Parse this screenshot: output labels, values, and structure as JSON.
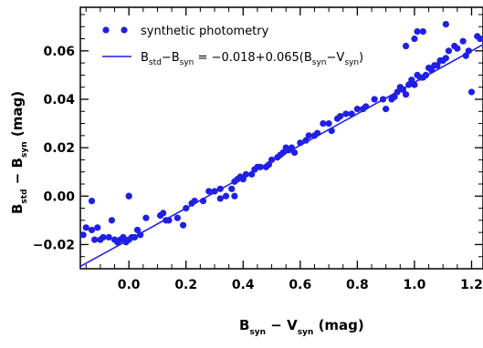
{
  "chart_data": {
    "type": "scatter",
    "xlabel": {
      "main": "B",
      "sub1": "syn",
      "dash": " − V",
      "sub2": "syn",
      "unit": " (mag)"
    },
    "ylabel": {
      "main": "B",
      "sub1": "std",
      "dash": " − B",
      "sub2": "syn",
      "unit": " (mag)"
    },
    "xlim": [
      -0.17,
      1.24
    ],
    "ylim": [
      -0.03,
      0.078
    ],
    "x_ticks": [
      "0.0",
      "0.2",
      "0.4",
      "0.6",
      "0.8",
      "1.0",
      "1.2"
    ],
    "x_tick_values": [
      0.0,
      0.2,
      0.4,
      0.6,
      0.8,
      1.0,
      1.2
    ],
    "y_ticks": [
      "−0.02",
      "0.00",
      "0.02",
      "0.04",
      "0.06"
    ],
    "y_tick_values": [
      -0.02,
      0.0,
      0.02,
      0.04,
      0.06
    ],
    "legend": {
      "scatter_label": "synthetic photometry",
      "fit_parts": {
        "b1": "B",
        "s1": "std",
        "m1": "−B",
        "s2": "syn",
        "eq": " = −0.018+0.065(B",
        "s3": "syn",
        "m2": "−V",
        "s4": "syn",
        "end": ")"
      }
    },
    "fit": {
      "intercept": -0.018,
      "slope": 0.065
    },
    "color": "#1f1fe6",
    "points": [
      [
        -0.16,
        -0.016
      ],
      [
        -0.15,
        -0.013
      ],
      [
        -0.13,
        -0.002
      ],
      [
        -0.13,
        -0.014
      ],
      [
        -0.12,
        -0.018
      ],
      [
        -0.11,
        -0.013
      ],
      [
        -0.1,
        -0.018
      ],
      [
        -0.09,
        -0.017
      ],
      [
        -0.07,
        -0.017
      ],
      [
        -0.06,
        -0.01
      ],
      [
        -0.05,
        -0.018
      ],
      [
        -0.04,
        -0.019
      ],
      [
        -0.03,
        -0.018
      ],
      [
        -0.02,
        -0.017
      ],
      [
        -0.01,
        -0.019
      ],
      [
        0.0,
        -0.018
      ],
      [
        0.0,
        0.0
      ],
      [
        0.0,
        0.0
      ],
      [
        0.01,
        -0.017
      ],
      [
        0.02,
        -0.017
      ],
      [
        0.03,
        -0.014
      ],
      [
        0.04,
        -0.016
      ],
      [
        0.06,
        -0.009
      ],
      [
        0.11,
        -0.008
      ],
      [
        0.12,
        -0.007
      ],
      [
        0.13,
        -0.01
      ],
      [
        0.14,
        -0.01
      ],
      [
        0.17,
        -0.009
      ],
      [
        0.19,
        -0.012
      ],
      [
        0.2,
        -0.005
      ],
      [
        0.22,
        -0.003
      ],
      [
        0.23,
        -0.002
      ],
      [
        0.26,
        -0.002
      ],
      [
        0.28,
        0.002
      ],
      [
        0.3,
        0.002
      ],
      [
        0.32,
        0.003
      ],
      [
        0.32,
        -0.001
      ],
      [
        0.34,
        0.0
      ],
      [
        0.36,
        0.003
      ],
      [
        0.37,
        0.006
      ],
      [
        0.37,
        0.0
      ],
      [
        0.38,
        0.007
      ],
      [
        0.39,
        0.008
      ],
      [
        0.4,
        0.007
      ],
      [
        0.41,
        0.009
      ],
      [
        0.43,
        0.009
      ],
      [
        0.44,
        0.011
      ],
      [
        0.45,
        0.012
      ],
      [
        0.46,
        0.012
      ],
      [
        0.48,
        0.012
      ],
      [
        0.49,
        0.013
      ],
      [
        0.5,
        0.015
      ],
      [
        0.52,
        0.016
      ],
      [
        0.53,
        0.017
      ],
      [
        0.54,
        0.018
      ],
      [
        0.55,
        0.02
      ],
      [
        0.56,
        0.019
      ],
      [
        0.57,
        0.02
      ],
      [
        0.58,
        0.018
      ],
      [
        0.6,
        0.022
      ],
      [
        0.62,
        0.023
      ],
      [
        0.63,
        0.025
      ],
      [
        0.65,
        0.025
      ],
      [
        0.66,
        0.026
      ],
      [
        0.68,
        0.03
      ],
      [
        0.7,
        0.03
      ],
      [
        0.71,
        0.027
      ],
      [
        0.73,
        0.032
      ],
      [
        0.74,
        0.033
      ],
      [
        0.76,
        0.034
      ],
      [
        0.78,
        0.034
      ],
      [
        0.8,
        0.036
      ],
      [
        0.82,
        0.036
      ],
      [
        0.83,
        0.037
      ],
      [
        0.86,
        0.04
      ],
      [
        0.89,
        0.04
      ],
      [
        0.9,
        0.036
      ],
      [
        0.92,
        0.04
      ],
      [
        0.93,
        0.041
      ],
      [
        0.94,
        0.043
      ],
      [
        0.95,
        0.045
      ],
      [
        0.96,
        0.044
      ],
      [
        0.97,
        0.042
      ],
      [
        0.98,
        0.046
      ],
      [
        0.99,
        0.048
      ],
      [
        1.0,
        0.046
      ],
      [
        1.01,
        0.05
      ],
      [
        1.02,
        0.049
      ],
      [
        1.03,
        0.049
      ],
      [
        1.04,
        0.05
      ],
      [
        1.05,
        0.053
      ],
      [
        1.06,
        0.052
      ],
      [
        1.07,
        0.054
      ],
      [
        1.08,
        0.054
      ],
      [
        1.09,
        0.056
      ],
      [
        1.1,
        0.056
      ],
      [
        1.11,
        0.057
      ],
      [
        1.12,
        0.06
      ],
      [
        1.14,
        0.062
      ],
      [
        1.15,
        0.061
      ],
      [
        1.17,
        0.064
      ],
      [
        1.19,
        0.06
      ],
      [
        1.2,
        0.043
      ],
      [
        1.22,
        0.066
      ],
      [
        1.23,
        0.065
      ],
      [
        0.97,
        0.062
      ],
      [
        1.0,
        0.065
      ],
      [
        1.01,
        0.068
      ],
      [
        1.03,
        0.068
      ],
      [
        1.11,
        0.071
      ],
      [
        1.18,
        0.058
      ]
    ]
  }
}
